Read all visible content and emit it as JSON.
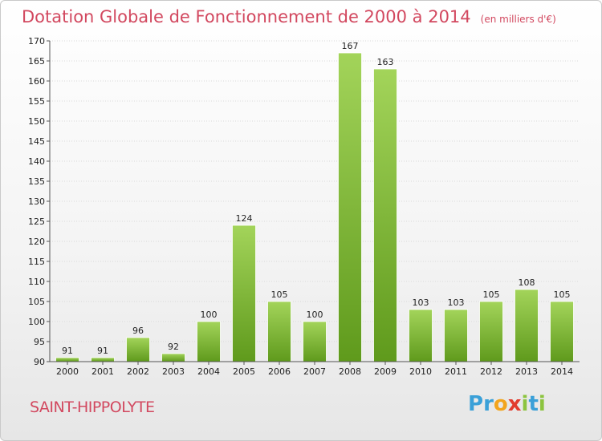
{
  "header": {
    "title": "Dotation Globale de Fonctionnement de 2000 à 2014",
    "unit": "(en milliers d'€)"
  },
  "footer": {
    "town": "SAINT-HIPPOLYTE",
    "brand_letters": [
      {
        "ch": "P",
        "color": "#3aa0d8"
      },
      {
        "ch": "r",
        "color": "#3aa0d8"
      },
      {
        "ch": "o",
        "color": "#f2a51e"
      },
      {
        "ch": "x",
        "color": "#e23b2e"
      },
      {
        "ch": "i",
        "color": "#8cc43f"
      },
      {
        "ch": "t",
        "color": "#3aa0d8"
      },
      {
        "ch": "i",
        "color": "#8cc43f"
      }
    ]
  },
  "chart_data": {
    "type": "bar",
    "categories": [
      "2000",
      "2001",
      "2002",
      "2003",
      "2004",
      "2005",
      "2006",
      "2007",
      "2008",
      "2009",
      "2010",
      "2011",
      "2012",
      "2013",
      "2014"
    ],
    "values": [
      91,
      91,
      96,
      92,
      100,
      124,
      105,
      100,
      167,
      163,
      103,
      103,
      105,
      108,
      105
    ],
    "ylim": [
      90,
      170
    ],
    "yticks": [
      90,
      95,
      100,
      105,
      110,
      115,
      120,
      125,
      130,
      135,
      140,
      145,
      150,
      155,
      160,
      165,
      170
    ],
    "grid": true,
    "bar_color_top": "#a3d45a",
    "bar_color_bottom": "#5f9a1c"
  }
}
